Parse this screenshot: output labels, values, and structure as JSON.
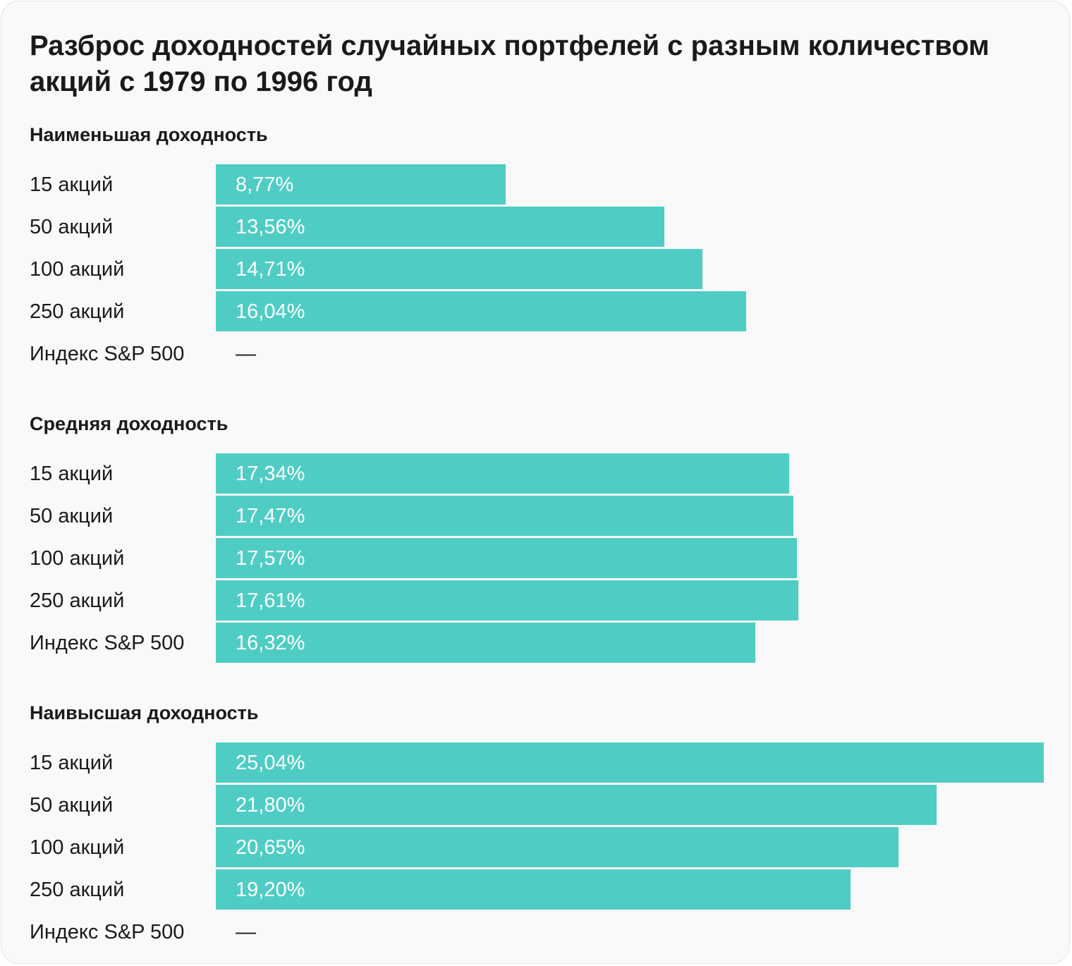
{
  "chart_data": {
    "type": "bar",
    "orientation": "horizontal",
    "title": "Разброс доходностей случайных портфелей с разным количеством акций с 1979 по 1996 год",
    "categories": [
      "15 акций",
      "50 акций",
      "100 акций",
      "250 акций",
      "Индекс S&P 500"
    ],
    "xlim": [
      0,
      25.04
    ],
    "bar_color": "#4fcdc4",
    "grid": false,
    "legend": "none",
    "series": [
      {
        "name": "Наименьшая доходность",
        "values": [
          8.77,
          13.56,
          14.71,
          16.04,
          null
        ],
        "labels": [
          "8,77%",
          "13,56%",
          "14,71%",
          "16,04%",
          "—"
        ]
      },
      {
        "name": "Средняя доходность",
        "values": [
          17.34,
          17.47,
          17.57,
          17.61,
          16.32
        ],
        "labels": [
          "17,34%",
          "17,47%",
          "17,57%",
          "17,61%",
          "16,32%"
        ]
      },
      {
        "name": "Наивысшая доходность",
        "values": [
          25.04,
          21.8,
          20.65,
          19.2,
          null
        ],
        "labels": [
          "25,04%",
          "21,80%",
          "20,65%",
          "19,20%",
          "—"
        ]
      }
    ]
  }
}
